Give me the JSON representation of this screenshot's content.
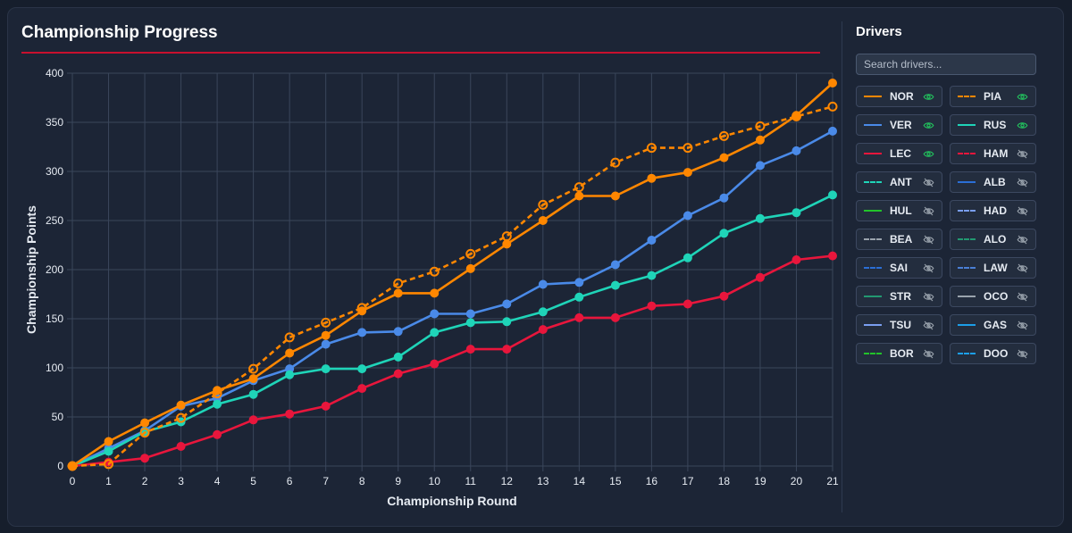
{
  "title": "Championship Progress",
  "sidebar": {
    "title": "Drivers",
    "search_placeholder": "Search drivers...",
    "drivers": [
      {
        "code": "NOR",
        "color": "#ff8700",
        "dashed": false,
        "visible": true
      },
      {
        "code": "PIA",
        "color": "#ff8700",
        "dashed": true,
        "visible": true
      },
      {
        "code": "VER",
        "color": "#4a8ae8",
        "dashed": false,
        "visible": true
      },
      {
        "code": "RUS",
        "color": "#1fd4b8",
        "dashed": false,
        "visible": true
      },
      {
        "code": "LEC",
        "color": "#e8163c",
        "dashed": false,
        "visible": true
      },
      {
        "code": "HAM",
        "color": "#e8163c",
        "dashed": true,
        "visible": false
      },
      {
        "code": "ANT",
        "color": "#1fd4b8",
        "dashed": true,
        "visible": false
      },
      {
        "code": "ALB",
        "color": "#2b6fd6",
        "dashed": false,
        "visible": false
      },
      {
        "code": "HUL",
        "color": "#22c32a",
        "dashed": false,
        "visible": false
      },
      {
        "code": "HAD",
        "color": "#7a9ef0",
        "dashed": true,
        "visible": false
      },
      {
        "code": "BEA",
        "color": "#9aa3ad",
        "dashed": true,
        "visible": false
      },
      {
        "code": "ALO",
        "color": "#229971",
        "dashed": true,
        "visible": false
      },
      {
        "code": "SAI",
        "color": "#2b6fd6",
        "dashed": true,
        "visible": false
      },
      {
        "code": "LAW",
        "color": "#4a7fd6",
        "dashed": true,
        "visible": false
      },
      {
        "code": "STR",
        "color": "#229971",
        "dashed": false,
        "visible": false
      },
      {
        "code": "OCO",
        "color": "#9aa3ad",
        "dashed": false,
        "visible": false
      },
      {
        "code": "TSU",
        "color": "#7a9ef0",
        "dashed": false,
        "visible": false
      },
      {
        "code": "GAS",
        "color": "#1c9ee8",
        "dashed": false,
        "visible": false
      },
      {
        "code": "BOR",
        "color": "#22c32a",
        "dashed": true,
        "visible": false
      },
      {
        "code": "DOO",
        "color": "#1c9ee8",
        "dashed": true,
        "visible": false
      }
    ]
  },
  "chart_data": {
    "type": "line",
    "title": "Championship Progress",
    "xlabel": "Championship Round",
    "ylabel": "Championship Points",
    "xlim": [
      0,
      21
    ],
    "ylim": [
      0,
      400
    ],
    "x_ticks": [
      0,
      1,
      2,
      3,
      4,
      5,
      6,
      7,
      8,
      9,
      10,
      11,
      12,
      13,
      14,
      15,
      16,
      17,
      18,
      19,
      20,
      21
    ],
    "y_ticks": [
      0,
      50,
      100,
      150,
      200,
      250,
      300,
      350,
      400
    ],
    "grid": true,
    "legend": "none",
    "x": [
      0,
      1,
      2,
      3,
      4,
      5,
      6,
      7,
      8,
      9,
      10,
      11,
      12,
      13,
      14,
      15,
      16,
      17,
      18,
      19,
      20,
      21
    ],
    "series": [
      {
        "name": "VER",
        "color": "#4a8ae8",
        "dashed": false,
        "values": [
          0,
          18,
          36,
          61,
          69,
          87,
          99,
          124,
          136,
          137,
          155,
          155,
          165,
          185,
          187,
          205,
          230,
          255,
          273,
          306,
          321,
          341
        ]
      },
      {
        "name": "RUS",
        "color": "#1fd4b8",
        "dashed": false,
        "values": [
          0,
          15,
          35,
          45,
          63,
          73,
          93,
          99,
          99,
          111,
          136,
          146,
          147,
          157,
          172,
          184,
          194,
          212,
          237,
          252,
          258,
          276
        ]
      },
      {
        "name": "LEC",
        "color": "#e8163c",
        "dashed": false,
        "values": [
          0,
          4,
          8,
          20,
          32,
          47,
          53,
          61,
          79,
          94,
          104,
          119,
          119,
          139,
          151,
          151,
          163,
          165,
          173,
          192,
          210,
          214
        ]
      },
      {
        "name": "PIA",
        "color": "#ff8700",
        "dashed": true,
        "values": [
          0,
          2,
          34,
          49,
          74,
          99,
          131,
          146,
          161,
          186,
          198,
          216,
          234,
          266,
          284,
          309,
          324,
          324,
          336,
          346,
          356,
          366
        ]
      },
      {
        "name": "NOR",
        "color": "#ff8700",
        "dashed": false,
        "values": [
          0,
          25,
          44,
          62,
          77,
          89,
          115,
          133,
          158,
          176,
          176,
          201,
          226,
          250,
          275,
          275,
          293,
          299,
          314,
          332,
          357,
          390
        ]
      }
    ]
  }
}
